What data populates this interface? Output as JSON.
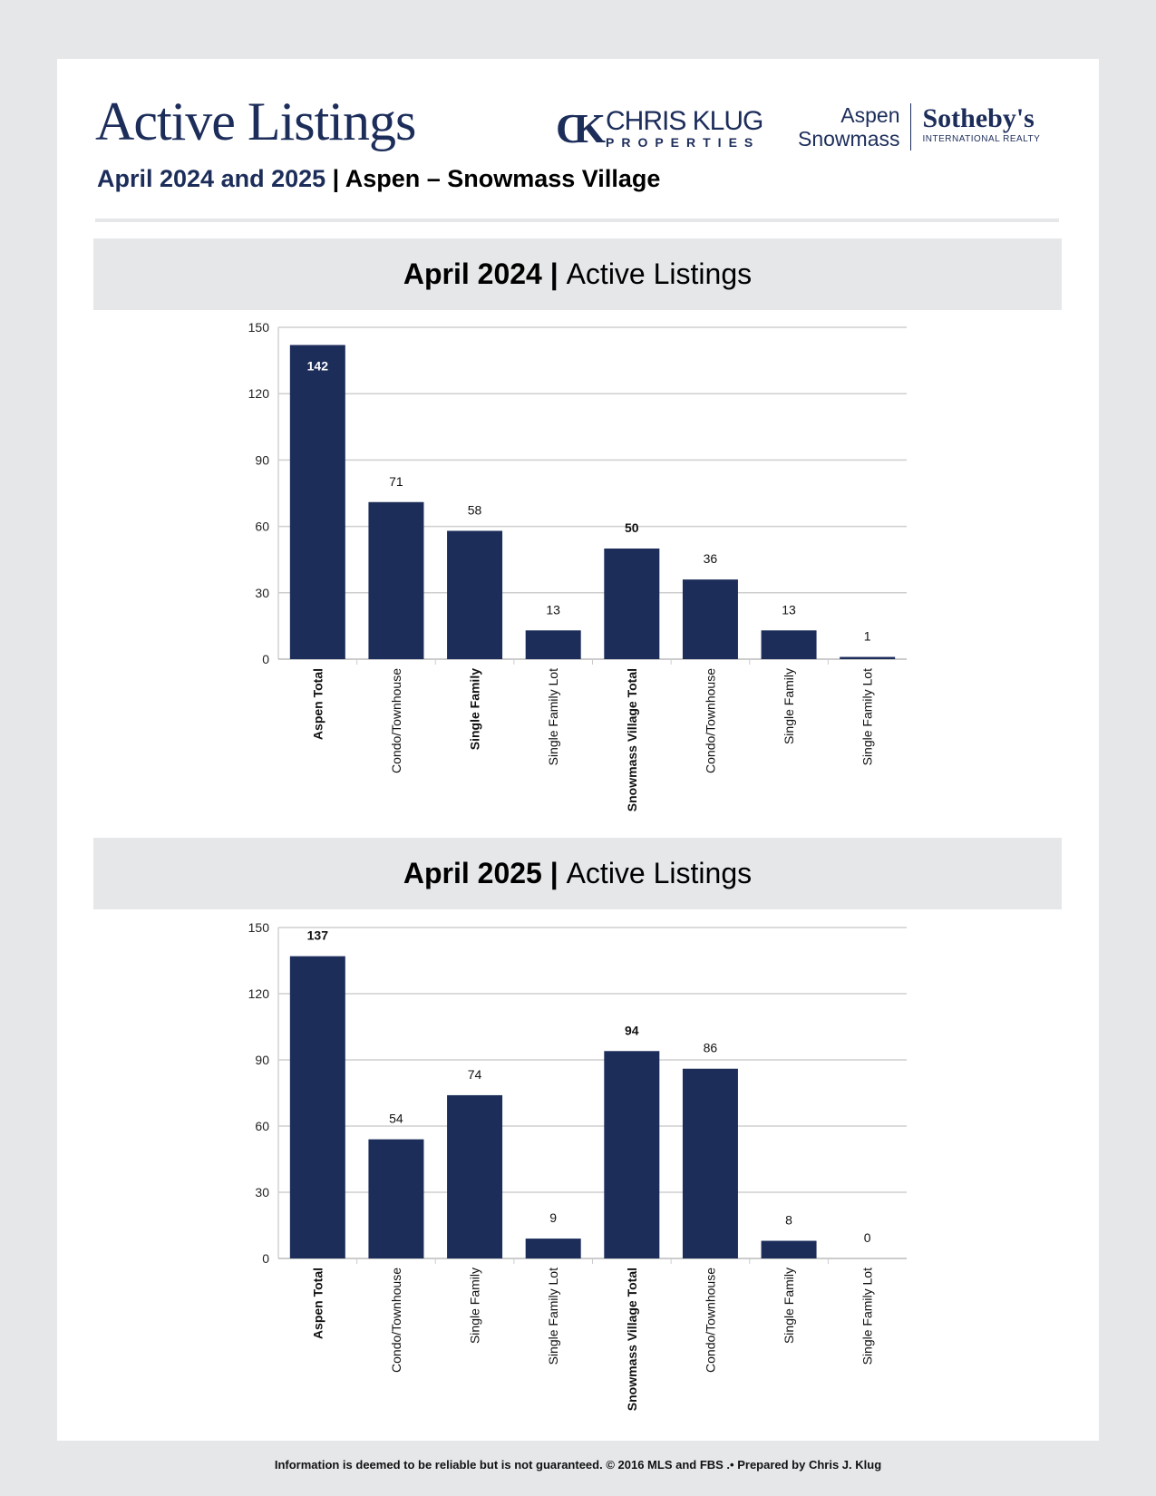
{
  "header": {
    "title": "Active Listings",
    "subtitle_blue": "April 2024 and 2025",
    "subtitle_sep": " | ",
    "subtitle_black": "Aspen – Snowmass Village"
  },
  "logos": {
    "ck_mark": "CK",
    "ck_name": "CHRIS KLUG",
    "ck_sub": "PROPERTIES",
    "sir_line1": "Aspen",
    "sir_line2": "Snowmass",
    "sir_brand": "Sotheby's",
    "sir_sub": "INTERNATIONAL REALTY"
  },
  "colors": {
    "bar": "#1c2d5a",
    "title": "#1c2d5a",
    "grid": "#c8c8c8",
    "banner": "#e6e7e9"
  },
  "sections": [
    {
      "date": "April 2024",
      "sep": " | ",
      "label": "Active Listings"
    },
    {
      "date": "April 2025",
      "sep": " | ",
      "label": "Active Listings"
    }
  ],
  "chart_data": [
    {
      "type": "bar",
      "title": "April 2024 | Active Listings",
      "ylim": [
        0,
        150
      ],
      "yticks": [
        0,
        30,
        60,
        90,
        120,
        150
      ],
      "grid": true,
      "categories": [
        "Aspen Total",
        "Condo/Townhouse",
        "Single Family",
        "Single Family Lot",
        "Snowmass Village Total",
        "Condo/Townhouse",
        "Single Family",
        "Single Family Lot"
      ],
      "bold_categories": [
        true,
        false,
        true,
        false,
        true,
        false,
        false,
        false
      ],
      "values": [
        142,
        71,
        58,
        13,
        50,
        36,
        13,
        1
      ],
      "bold_values": [
        true,
        false,
        false,
        false,
        true,
        false,
        false,
        false
      ],
      "label_inside": [
        true,
        false,
        false,
        false,
        false,
        false,
        false,
        false
      ]
    },
    {
      "type": "bar",
      "title": "April 2025 | Active Listings",
      "ylim": [
        0,
        150
      ],
      "yticks": [
        0,
        30,
        60,
        90,
        120,
        150
      ],
      "grid": true,
      "categories": [
        "Aspen Total",
        "Condo/Townhouse",
        "Single Family",
        "Single Family Lot",
        "Snowmass Village Total",
        "Condo/Townhouse",
        "Single Family",
        "Single Family Lot"
      ],
      "bold_categories": [
        true,
        false,
        false,
        false,
        true,
        false,
        false,
        false
      ],
      "values": [
        137,
        54,
        74,
        9,
        94,
        86,
        8,
        0
      ],
      "bold_values": [
        true,
        false,
        false,
        false,
        true,
        false,
        false,
        false
      ],
      "label_inside": [
        false,
        false,
        false,
        false,
        false,
        false,
        false,
        false
      ]
    }
  ],
  "footer": "Information is deemed to be reliable but is not guaranteed. © 2016 MLS and FBS .• Prepared by Chris J. Klug"
}
